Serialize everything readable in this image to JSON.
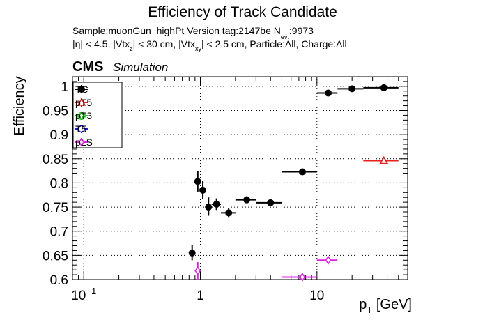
{
  "chart_data": {
    "type": "scatter",
    "title": "Efficiency of Track Candidate",
    "subtitle_parts": {
      "sample": "Sample:muonGun_highPt   Version tag:2147be  N",
      "sample_sub": "evt",
      "sample_end": ":9973",
      "cut_eta": "|η| < 4.5, |Vtx",
      "cut_z_sub": "z",
      "cut_mid": "| < 30 cm, |Vtx",
      "cut_xy_sub": "xy",
      "cut_end": "| < 2.5 cm, Particle:All, Charge:All"
    },
    "cms_label": "CMS",
    "simulation_label": "Simulation",
    "xlabel": "p",
    "xlabel_sub": "T",
    "xlabel_unit": " [GeV]",
    "ylabel": "Efficiency",
    "x_scale": "log",
    "xlim": [
      0.08,
      60
    ],
    "ylim": [
      0.6,
      1.02
    ],
    "grid": true,
    "legend_position": "top-left",
    "x_ticks": [
      {
        "value": 0.1,
        "base": "10",
        "exp": "−1"
      },
      {
        "value": 1,
        "base": "1",
        "exp": ""
      },
      {
        "value": 10,
        "base": "10",
        "exp": ""
      }
    ],
    "y_ticks": [
      {
        "value": 0.6,
        "label": "0.6"
      },
      {
        "value": 0.65,
        "label": "0.65"
      },
      {
        "value": 0.7,
        "label": "0.7"
      },
      {
        "value": 0.75,
        "label": "0.75"
      },
      {
        "value": 0.8,
        "label": "0.8"
      },
      {
        "value": 0.85,
        "label": "0.85"
      },
      {
        "value": 0.9,
        "label": "0.9"
      },
      {
        "value": 0.95,
        "label": "0.95"
      },
      {
        "value": 1,
        "label": "1"
      }
    ],
    "series": [
      {
        "name": "TC",
        "color": "#000000",
        "marker": "filled-circle",
        "points": [
          {
            "x": 0.85,
            "xlo": 0.8,
            "xhi": 0.9,
            "y": 0.655,
            "ylo": 0.64,
            "yhi": 0.672
          },
          {
            "x": 0.95,
            "xlo": 0.9,
            "xhi": 1.0,
            "y": 0.803,
            "ylo": 0.782,
            "yhi": 0.824
          },
          {
            "x": 1.05,
            "xlo": 1.0,
            "xhi": 1.1,
            "y": 0.785,
            "ylo": 0.767,
            "yhi": 0.805
          },
          {
            "x": 1.175,
            "xlo": 1.1,
            "xhi": 1.25,
            "y": 0.75,
            "ylo": 0.732,
            "yhi": 0.77
          },
          {
            "x": 1.375,
            "xlo": 1.25,
            "xhi": 1.5,
            "y": 0.756,
            "ylo": 0.744,
            "yhi": 0.768
          },
          {
            "x": 1.75,
            "xlo": 1.5,
            "xhi": 2.0,
            "y": 0.738,
            "ylo": 0.728,
            "yhi": 0.748
          },
          {
            "x": 2.5,
            "xlo": 2.0,
            "xhi": 3.0,
            "y": 0.765,
            "ylo": 0.758,
            "yhi": 0.772
          },
          {
            "x": 4.0,
            "xlo": 3.0,
            "xhi": 5.0,
            "y": 0.759,
            "ylo": 0.753,
            "yhi": 0.765
          },
          {
            "x": 7.5,
            "xlo": 5.0,
            "xhi": 10.0,
            "y": 0.823,
            "ylo": 0.819,
            "yhi": 0.827
          },
          {
            "x": 12.5,
            "xlo": 10.0,
            "xhi": 15.0,
            "y": 0.986,
            "ylo": 0.983,
            "yhi": 0.989
          },
          {
            "x": 20.0,
            "xlo": 15.0,
            "xhi": 25.0,
            "y": 0.995,
            "ylo": 0.993,
            "yhi": 0.997
          },
          {
            "x": 37.5,
            "xlo": 25.0,
            "xhi": 50.0,
            "y": 0.997,
            "ylo": 0.995,
            "yhi": 0.999
          }
        ]
      },
      {
        "name": "pT5",
        "color": "#e8201c",
        "marker": "open-triangle",
        "points": [
          {
            "x": 37.5,
            "xlo": 25.0,
            "xhi": 50.0,
            "y": 0.846,
            "ylo": 0.842,
            "yhi": 0.85
          }
        ]
      },
      {
        "name": "pT3",
        "color": "#22c022",
        "marker": "open-cross",
        "points": []
      },
      {
        "name": "T5",
        "color": "#1a1ae0",
        "marker": "open-circle",
        "points": []
      },
      {
        "name": "pLS",
        "color": "#e020e0",
        "marker": "open-diamond",
        "points": [
          {
            "x": 0.95,
            "xlo": 0.9,
            "xhi": 1.0,
            "y": 0.618,
            "ylo": 0.6,
            "yhi": 0.636
          },
          {
            "x": 7.5,
            "xlo": 5.0,
            "xhi": 10.0,
            "y": 0.605,
            "ylo": 0.603,
            "yhi": 0.607
          },
          {
            "x": 12.5,
            "xlo": 10.0,
            "xhi": 15.0,
            "y": 0.64,
            "ylo": 0.636,
            "yhi": 0.644
          }
        ]
      }
    ]
  }
}
